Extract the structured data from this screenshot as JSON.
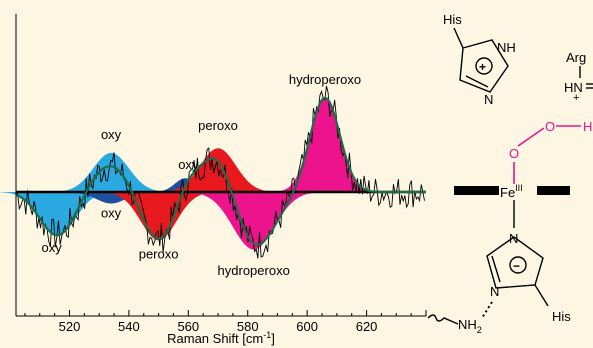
{
  "chart_data": {
    "type": "area",
    "title": "",
    "xlabel": "Raman Shift [cm",
    "xlabel_sup": "-1",
    "xlabel_close": "]",
    "ylabel": "",
    "xlim": [
      502,
      640
    ],
    "xticks": [
      "520",
      "540",
      "560",
      "580",
      "600",
      "620"
    ],
    "grid": false,
    "colors": {
      "oxy": "#29a9e0",
      "oxy_dark": "#1f4fa0",
      "peroxo": "#e8191e",
      "hydroperoxo": "#ec138d",
      "fit": "#1e6b4a",
      "trace": "#000000",
      "background": "#fdf6e3",
      "h_bond": "#ec138d"
    },
    "series": [
      {
        "label_pos": "oxy",
        "center": 534,
        "width": 6,
        "amp": 0.85
      },
      {
        "label_pos": "oxy",
        "center": 559,
        "width": 3.5,
        "amp": 0.3
      },
      {
        "label_pos": "peroxo",
        "center": 570,
        "width": 6,
        "amp": 0.95
      },
      {
        "label_pos": "hydroperoxo",
        "center": 606,
        "width": 5,
        "amp": 2.05
      },
      {
        "label_neg": "oxy",
        "center": 516,
        "width": 6,
        "amp": -0.95
      },
      {
        "label_neg": "oxy",
        "center": 534,
        "width": 5,
        "amp": -0.25
      },
      {
        "label_neg": "peroxo",
        "center": 550,
        "width": 6,
        "amp": -1.05
      },
      {
        "label_neg": "hydroperoxo",
        "center": 582,
        "width": 7,
        "amp": -1.25
      }
    ],
    "annotations": [
      {
        "text": "oxy",
        "x": 534,
        "y": 1.15
      },
      {
        "text": "oxy",
        "x": 560,
        "y": 0.5
      },
      {
        "text": "peroxo",
        "x": 570,
        "y": 1.35
      },
      {
        "text": "hydroperoxo",
        "x": 606,
        "y": 2.35
      },
      {
        "text": "oxy",
        "x": 534,
        "y": -0.55
      },
      {
        "text": "oxy",
        "x": 514,
        "y": -1.3
      },
      {
        "text": "peroxo",
        "x": 550,
        "y": -1.45
      },
      {
        "text": "hydroperoxo",
        "x": 582,
        "y": -1.8
      }
    ]
  },
  "structure": {
    "his_top": "His",
    "nh": "NH",
    "n_top": "N",
    "plus": "+",
    "arg": "Arg",
    "hn": "HN",
    "arg_plus": "+",
    "o1": "O",
    "o2": "O",
    "h": "H",
    "fe": "Fe",
    "fe_ox": "III",
    "n_ring_top": "N",
    "n_ring_bottom": "N",
    "minus": "−",
    "nh2": "NH",
    "nh2_sub": "2",
    "his_bottom": "His"
  }
}
